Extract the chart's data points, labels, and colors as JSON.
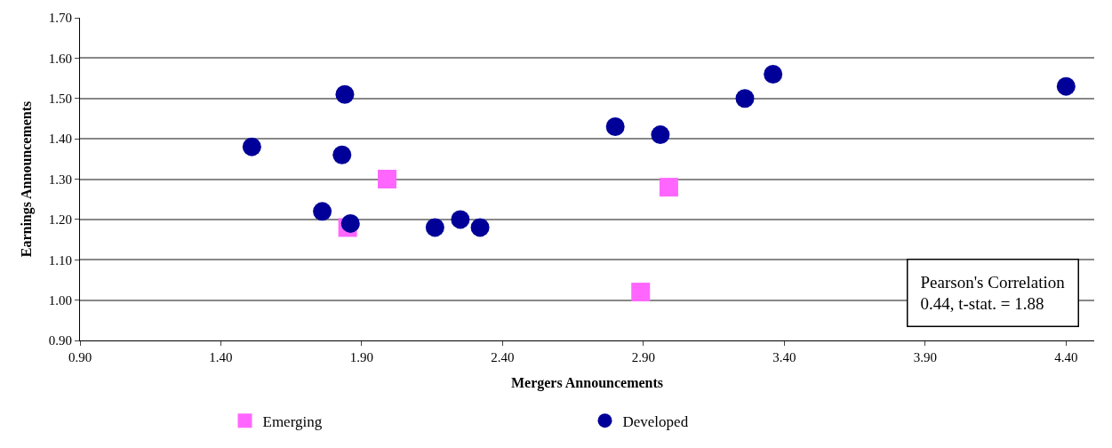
{
  "chart_data": {
    "type": "scatter",
    "xlabel": "Mergers Announcements",
    "ylabel": "Earnings Announcements",
    "xlim": [
      0.9,
      4.5
    ],
    "xticks": [
      {
        "value": 0.9,
        "label": "0.90"
      },
      {
        "value": 1.4,
        "label": "1.40"
      },
      {
        "value": 1.9,
        "label": "1.90"
      },
      {
        "value": 2.4,
        "label": "2.40"
      },
      {
        "value": 2.9,
        "label": "2.90"
      },
      {
        "value": 3.4,
        "label": "3.40"
      },
      {
        "value": 3.9,
        "label": "3.90"
      },
      {
        "value": 4.4,
        "label": "4.40"
      }
    ],
    "ylim": [
      0.9,
      1.7
    ],
    "yticks": [
      {
        "value": 0.9,
        "label": "0.90"
      },
      {
        "value": 1.0,
        "label": "1.00"
      },
      {
        "value": 1.1,
        "label": "1.10"
      },
      {
        "value": 1.2,
        "label": "1.20"
      },
      {
        "value": 1.3,
        "label": "1.30"
      },
      {
        "value": 1.4,
        "label": "1.40"
      },
      {
        "value": 1.5,
        "label": "1.50"
      },
      {
        "value": 1.6,
        "label": "1.60"
      },
      {
        "value": 1.7,
        "label": "1.70"
      }
    ],
    "grid": "y",
    "legend": "bottom",
    "series": [
      {
        "name": "Emerging",
        "color": "#ff66ff",
        "marker": "square",
        "x": [
          1.99,
          1.85,
          2.99,
          2.89
        ],
        "values": [
          1.3,
          1.18,
          1.28,
          1.02
        ]
      },
      {
        "name": "Developed",
        "color": "#000099",
        "marker": "circle",
        "x": [
          1.51,
          1.84,
          1.83,
          1.76,
          1.86,
          2.16,
          2.25,
          2.32,
          2.8,
          2.96,
          3.26,
          3.36,
          4.4
        ],
        "values": [
          1.38,
          1.51,
          1.36,
          1.22,
          1.19,
          1.18,
          1.2,
          1.18,
          1.43,
          1.41,
          1.5,
          1.56,
          1.53
        ]
      }
    ],
    "annotations": [
      "Pearson's Correlation\n0.44, t-stat. = 1.88"
    ]
  }
}
